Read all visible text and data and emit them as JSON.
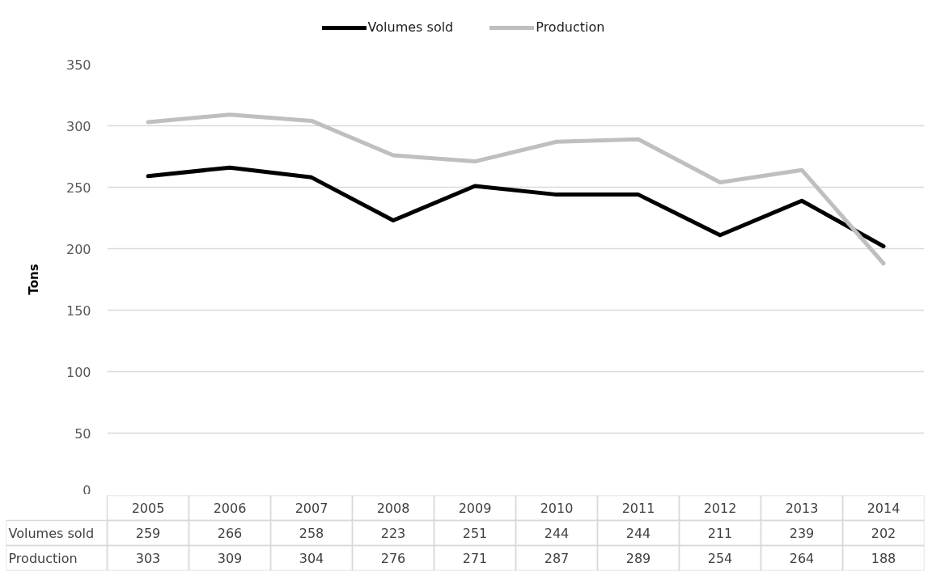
{
  "chart_data": {
    "type": "line",
    "ylabel": "Tons",
    "categories": [
      "2005",
      "2006",
      "2007",
      "2008",
      "2009",
      "2010",
      "2011",
      "2012",
      "2013",
      "2014"
    ],
    "series": [
      {
        "name": "Volumes sold",
        "color": "#000000",
        "values": [
          259,
          266,
          258,
          223,
          251,
          244,
          244,
          211,
          239,
          202
        ]
      },
      {
        "name": "Production",
        "color": "#bfbfbf",
        "values": [
          303,
          309,
          304,
          276,
          271,
          287,
          289,
          254,
          264,
          188
        ]
      }
    ],
    "ylim": [
      0,
      350
    ],
    "yticks": [
      0,
      50,
      100,
      150,
      200,
      250,
      300,
      350
    ],
    "grid": "y",
    "legend": "top",
    "data_labels": true,
    "line_style": "solid"
  }
}
